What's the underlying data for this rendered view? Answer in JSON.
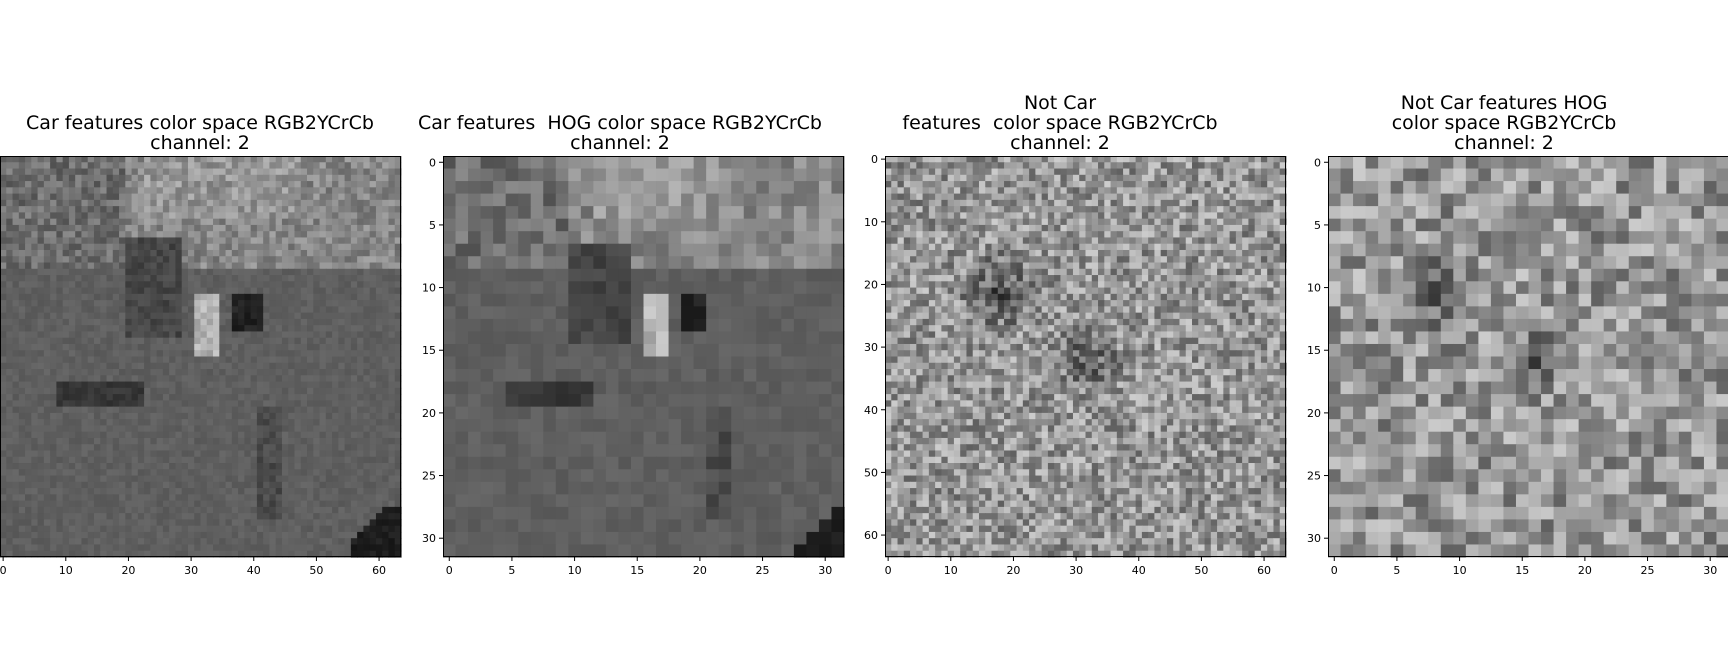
{
  "chart_data": [
    {
      "type": "heatmap",
      "title": "Car features color space RGB2YCrCb\nchannel: 2",
      "colormap": "gray",
      "rows": 64,
      "cols": 64,
      "xlim": [
        0,
        63
      ],
      "ylim": [
        63,
        0
      ],
      "xticks": [
        "0",
        "10",
        "20",
        "30",
        "40",
        "50",
        "60"
      ],
      "yticks": []
    },
    {
      "type": "heatmap",
      "title": "Car features  HOG color space RGB2YCrCb\nchannel: 2",
      "colormap": "gray",
      "rows": 32,
      "cols": 32,
      "xlim": [
        0,
        31
      ],
      "ylim": [
        31,
        0
      ],
      "xticks": [
        "0",
        "5",
        "10",
        "15",
        "20",
        "25",
        "30"
      ],
      "yticks": [
        "0",
        "5",
        "10",
        "15",
        "20",
        "25",
        "30"
      ]
    },
    {
      "type": "heatmap",
      "title": "Not Car\nfeatures  color space RGB2YCrCb\nchannel: 2",
      "colormap": "gray",
      "rows": 64,
      "cols": 64,
      "xlim": [
        0,
        63
      ],
      "ylim": [
        63,
        0
      ],
      "xticks": [
        "0",
        "10",
        "20",
        "30",
        "40",
        "50",
        "60"
      ],
      "yticks": [
        "0",
        "10",
        "20",
        "30",
        "40",
        "50",
        "60"
      ]
    },
    {
      "type": "heatmap",
      "title": "Not Car features HOG\ncolor space RGB2YCrCb\nchannel: 2",
      "colormap": "gray",
      "rows": 32,
      "cols": 32,
      "xlim": [
        0,
        31
      ],
      "ylim": [
        31,
        0
      ],
      "xticks": [
        "0",
        "5",
        "10",
        "15",
        "20",
        "25",
        "30"
      ],
      "yticks": [
        "0",
        "5",
        "10",
        "15",
        "20",
        "25",
        "30"
      ]
    }
  ]
}
